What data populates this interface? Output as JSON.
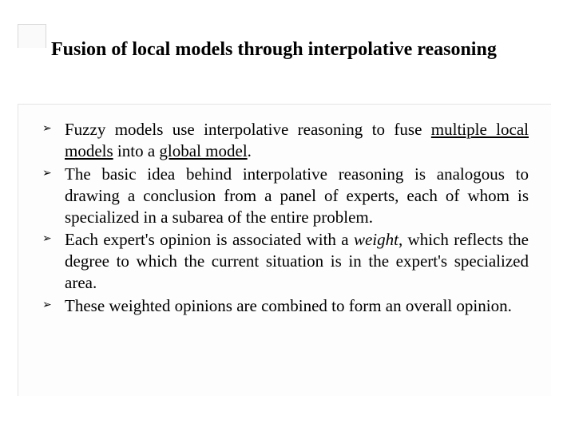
{
  "title": "Fusion of local models through interpolative reasoning",
  "bullet_glyph": "➢",
  "bullets": [
    {
      "pre": "Fuzzy models use interpolative reasoning to fuse ",
      "u1": "multiple local models",
      "mid": " into a ",
      "u2": "global model",
      "post": "."
    },
    {
      "text": "The basic idea behind interpolative reasoning is analogous to drawing a conclusion from a panel of experts, each of whom is specialized in a subarea of the entire problem."
    },
    {
      "pre": "Each expert's opinion is associated with a ",
      "i1": "weight",
      "post": ", which reflects the degree to which the current situation is in the expert's specialized area."
    },
    {
      "text": "These weighted opinions are combined to form an overall opinion."
    }
  ],
  "colors": {
    "background": "#ffffff",
    "text": "#000000",
    "box_bg": "#fdfdfd",
    "border": "#e5e5e5"
  }
}
